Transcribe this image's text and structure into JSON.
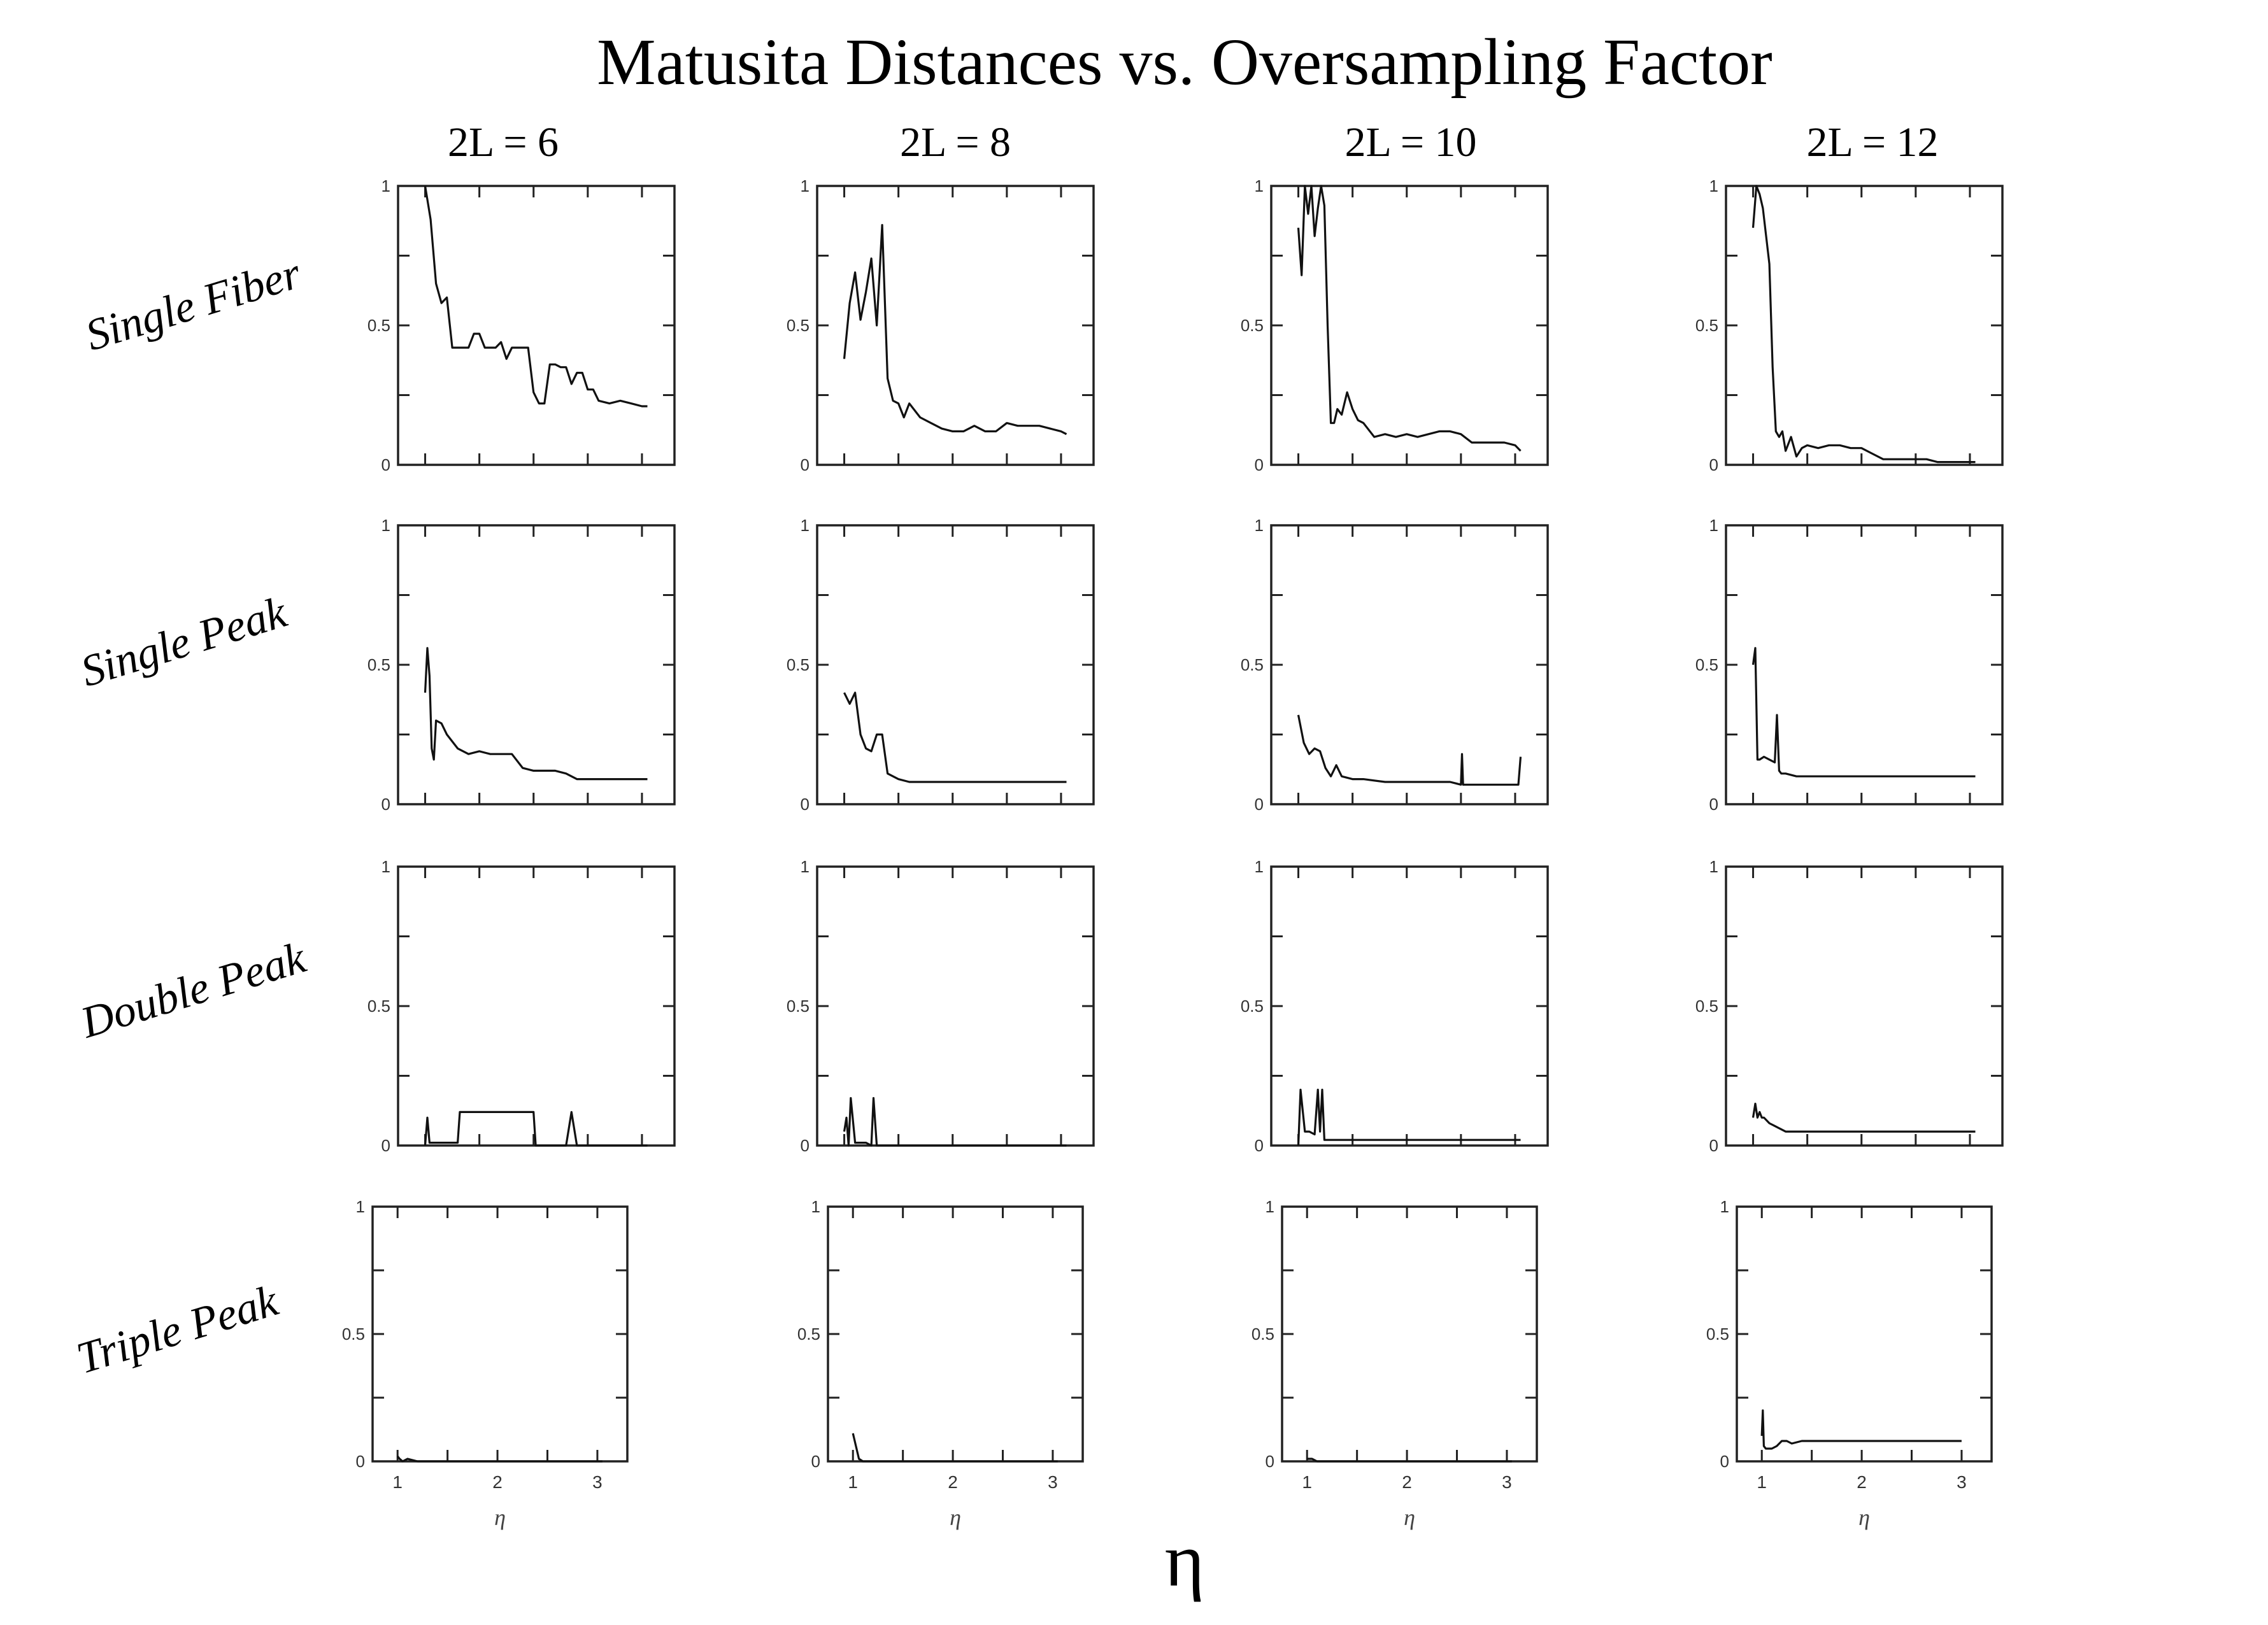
{
  "chart_data": {
    "type": "line",
    "title": "Matusita Distances vs. Oversampling Factor",
    "supxlabel": "η",
    "columns": [
      "2L = 6",
      "2L = 8",
      "2L = 10",
      "2L = 12"
    ],
    "rows": [
      "Single Fiber",
      "Single Peak",
      "Double Peak",
      "Triple Peak"
    ],
    "xlim": [
      0.75,
      3.3
    ],
    "ylim": [
      0,
      1
    ],
    "xticks": [
      1,
      2,
      3
    ],
    "yticks": [
      0,
      0.5,
      1
    ],
    "ytick_labels": [
      "0",
      "0.5",
      "1"
    ],
    "xlabel": "η",
    "series": [
      [
        {
          "x": [
            1.0,
            1.05,
            1.1,
            1.15,
            1.2,
            1.25,
            1.3,
            1.35,
            1.4,
            1.45,
            1.5,
            1.55,
            1.6,
            1.65,
            1.7,
            1.75,
            1.8,
            1.85,
            1.9,
            1.95,
            2.0,
            2.05,
            2.1,
            2.15,
            2.2,
            2.25,
            2.3,
            2.35,
            2.4,
            2.45,
            2.5,
            2.55,
            2.6,
            2.7,
            2.8,
            2.9,
            3.0,
            3.05
          ],
          "y": [
            1.0,
            0.88,
            0.65,
            0.58,
            0.6,
            0.42,
            0.42,
            0.42,
            0.42,
            0.47,
            0.47,
            0.42,
            0.42,
            0.42,
            0.44,
            0.38,
            0.42,
            0.42,
            0.42,
            0.42,
            0.26,
            0.22,
            0.22,
            0.36,
            0.36,
            0.35,
            0.35,
            0.29,
            0.33,
            0.33,
            0.27,
            0.27,
            0.23,
            0.22,
            0.23,
            0.22,
            0.21,
            0.21
          ]
        },
        {
          "x": [
            1.0,
            1.05,
            1.1,
            1.15,
            1.2,
            1.25,
            1.3,
            1.35,
            1.4,
            1.45,
            1.5,
            1.55,
            1.6,
            1.7,
            1.8,
            1.9,
            2.0,
            2.1,
            2.2,
            2.3,
            2.4,
            2.5,
            2.6,
            2.7,
            2.8,
            2.9,
            3.0,
            3.05
          ],
          "y": [
            0.38,
            0.58,
            0.69,
            0.52,
            0.62,
            0.74,
            0.5,
            0.86,
            0.31,
            0.23,
            0.22,
            0.17,
            0.22,
            0.17,
            0.15,
            0.13,
            0.12,
            0.12,
            0.14,
            0.12,
            0.12,
            0.15,
            0.14,
            0.14,
            0.14,
            0.13,
            0.12,
            0.11
          ]
        },
        {
          "x": [
            1.0,
            1.03,
            1.06,
            1.09,
            1.12,
            1.15,
            1.18,
            1.21,
            1.24,
            1.27,
            1.3,
            1.33,
            1.36,
            1.4,
            1.45,
            1.5,
            1.55,
            1.6,
            1.7,
            1.8,
            1.9,
            2.0,
            2.1,
            2.2,
            2.3,
            2.4,
            2.5,
            2.6,
            2.7,
            2.8,
            2.9,
            3.0,
            3.05
          ],
          "y": [
            0.85,
            0.68,
            1.0,
            0.9,
            1.0,
            0.82,
            0.92,
            1.0,
            0.93,
            0.5,
            0.15,
            0.15,
            0.2,
            0.18,
            0.26,
            0.2,
            0.16,
            0.15,
            0.1,
            0.11,
            0.1,
            0.11,
            0.1,
            0.11,
            0.12,
            0.12,
            0.11,
            0.08,
            0.08,
            0.08,
            0.08,
            0.07,
            0.05
          ]
        },
        {
          "x": [
            1.0,
            1.03,
            1.06,
            1.09,
            1.12,
            1.15,
            1.18,
            1.21,
            1.24,
            1.27,
            1.3,
            1.35,
            1.4,
            1.45,
            1.5,
            1.6,
            1.7,
            1.8,
            1.9,
            2.0,
            2.1,
            2.2,
            2.3,
            2.4,
            2.5,
            2.6,
            2.7,
            2.8,
            2.9,
            3.0,
            3.05
          ],
          "y": [
            0.85,
            1.0,
            0.97,
            0.92,
            0.82,
            0.72,
            0.35,
            0.12,
            0.1,
            0.12,
            0.05,
            0.1,
            0.03,
            0.06,
            0.07,
            0.06,
            0.07,
            0.07,
            0.06,
            0.06,
            0.04,
            0.02,
            0.02,
            0.02,
            0.02,
            0.02,
            0.01,
            0.01,
            0.01,
            0.01,
            0.01
          ]
        }
      ],
      [
        {
          "x": [
            1.0,
            1.02,
            1.04,
            1.06,
            1.08,
            1.1,
            1.15,
            1.2,
            1.3,
            1.4,
            1.5,
            1.6,
            1.7,
            1.8,
            1.9,
            2.0,
            2.1,
            2.2,
            2.3,
            2.4,
            2.5,
            2.6,
            2.8,
            3.0,
            3.05
          ],
          "y": [
            0.4,
            0.56,
            0.46,
            0.2,
            0.16,
            0.3,
            0.29,
            0.25,
            0.2,
            0.18,
            0.19,
            0.18,
            0.18,
            0.18,
            0.13,
            0.12,
            0.12,
            0.12,
            0.11,
            0.09,
            0.09,
            0.09,
            0.09,
            0.09,
            0.09
          ]
        },
        {
          "x": [
            1.0,
            1.05,
            1.1,
            1.15,
            1.2,
            1.25,
            1.3,
            1.35,
            1.4,
            1.45,
            1.5,
            1.6,
            1.7,
            1.8,
            2.0,
            2.2,
            2.4,
            2.6,
            2.8,
            3.0,
            3.05
          ],
          "y": [
            0.4,
            0.36,
            0.4,
            0.25,
            0.2,
            0.19,
            0.25,
            0.25,
            0.11,
            0.1,
            0.09,
            0.08,
            0.08,
            0.08,
            0.08,
            0.08,
            0.08,
            0.08,
            0.08,
            0.08,
            0.08
          ]
        },
        {
          "x": [
            1.0,
            1.05,
            1.1,
            1.15,
            1.2,
            1.25,
            1.3,
            1.35,
            1.4,
            1.5,
            1.6,
            1.8,
            2.0,
            2.2,
            2.4,
            2.5,
            2.51,
            2.52,
            2.6,
            2.8,
            3.0,
            3.03,
            3.05
          ],
          "y": [
            0.32,
            0.22,
            0.18,
            0.2,
            0.19,
            0.13,
            0.1,
            0.14,
            0.1,
            0.09,
            0.09,
            0.08,
            0.08,
            0.08,
            0.08,
            0.07,
            0.18,
            0.07,
            0.07,
            0.07,
            0.07,
            0.07,
            0.17
          ]
        },
        {
          "x": [
            1.0,
            1.02,
            1.04,
            1.06,
            1.1,
            1.15,
            1.2,
            1.22,
            1.24,
            1.26,
            1.3,
            1.4,
            1.6,
            1.8,
            2.0,
            2.2,
            2.4,
            2.6,
            2.8,
            3.0,
            3.05
          ],
          "y": [
            0.5,
            0.56,
            0.16,
            0.16,
            0.17,
            0.16,
            0.15,
            0.32,
            0.12,
            0.11,
            0.11,
            0.1,
            0.1,
            0.1,
            0.1,
            0.1,
            0.1,
            0.1,
            0.1,
            0.1,
            0.1
          ]
        }
      ],
      [
        {
          "x": [
            1.0,
            1.02,
            1.04,
            1.1,
            1.2,
            1.3,
            1.32,
            1.6,
            1.8,
            2.0,
            2.02,
            2.2,
            2.3,
            2.35,
            2.4,
            2.5,
            2.7,
            3.0,
            3.05
          ],
          "y": [
            0.0,
            0.1,
            0.01,
            0.01,
            0.01,
            0.01,
            0.12,
            0.12,
            0.12,
            0.12,
            0.0,
            0.0,
            0.0,
            0.12,
            0.0,
            0.0,
            0.0,
            0.0,
            0.0
          ]
        },
        {
          "x": [
            1.0,
            1.02,
            1.04,
            1.06,
            1.1,
            1.2,
            1.25,
            1.27,
            1.3,
            1.4,
            1.6,
            2.0,
            2.5,
            3.0,
            3.05
          ],
          "y": [
            0.05,
            0.1,
            0.0,
            0.17,
            0.01,
            0.01,
            0.0,
            0.17,
            0.0,
            0.0,
            0.0,
            0.0,
            0.0,
            0.0,
            0.0
          ]
        },
        {
          "x": [
            1.0,
            1.02,
            1.06,
            1.1,
            1.15,
            1.18,
            1.2,
            1.22,
            1.24,
            1.26,
            1.3,
            1.5,
            2.0,
            2.5,
            3.0,
            3.05
          ],
          "y": [
            0.0,
            0.2,
            0.05,
            0.05,
            0.04,
            0.2,
            0.05,
            0.2,
            0.02,
            0.02,
            0.02,
            0.02,
            0.02,
            0.02,
            0.02,
            0.02
          ]
        },
        {
          "x": [
            1.0,
            1.02,
            1.04,
            1.06,
            1.08,
            1.1,
            1.15,
            1.2,
            1.25,
            1.3,
            1.5,
            2.0,
            2.5,
            3.0,
            3.05
          ],
          "y": [
            0.1,
            0.15,
            0.1,
            0.12,
            0.1,
            0.1,
            0.08,
            0.07,
            0.06,
            0.05,
            0.05,
            0.05,
            0.05,
            0.05,
            0.05
          ]
        }
      ],
      [
        {
          "x": [
            1.0,
            1.02,
            1.05,
            1.1,
            1.2,
            1.5,
            2.0,
            2.5,
            3.0,
            3.05
          ],
          "y": [
            0.02,
            0.01,
            0.0,
            0.01,
            0.0,
            0.0,
            0.0,
            0.0,
            0.0,
            0.0
          ]
        },
        {
          "x": [
            1.0,
            1.03,
            1.06,
            1.1,
            1.2,
            1.5,
            2.0,
            2.5,
            3.0,
            3.05
          ],
          "y": [
            0.11,
            0.06,
            0.01,
            0.0,
            0.0,
            0.0,
            0.0,
            0.0,
            0.0,
            0.0
          ]
        },
        {
          "x": [
            1.0,
            1.05,
            1.1,
            1.15,
            1.2,
            1.5,
            2.0,
            2.5,
            3.0,
            3.05
          ],
          "y": [
            0.01,
            0.01,
            0.0,
            0.0,
            0.0,
            0.0,
            0.0,
            0.0,
            0.0,
            0.0
          ]
        },
        {
          "x": [
            1.0,
            1.01,
            1.02,
            1.04,
            1.06,
            1.1,
            1.15,
            1.2,
            1.25,
            1.3,
            1.4,
            1.6,
            1.8,
            2.0,
            2.2,
            2.4,
            2.6,
            2.8,
            3.0
          ],
          "y": [
            0.1,
            0.2,
            0.06,
            0.05,
            0.05,
            0.05,
            0.06,
            0.08,
            0.08,
            0.07,
            0.08,
            0.08,
            0.08,
            0.08,
            0.08,
            0.08,
            0.08,
            0.08,
            0.08
          ]
        }
      ]
    ]
  }
}
